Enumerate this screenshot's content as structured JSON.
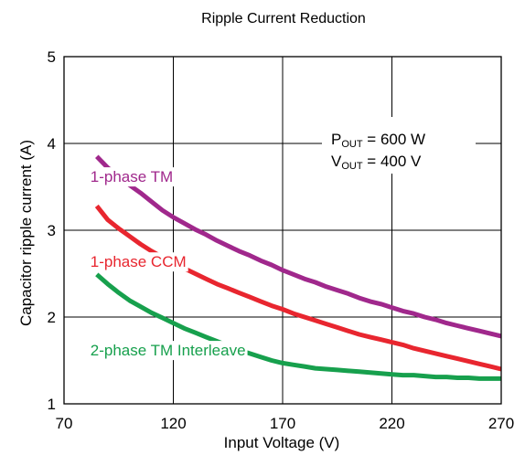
{
  "chart_data": {
    "type": "line",
    "title": "Ripple Current Reduction",
    "xlabel": "Input Voltage  (V)",
    "ylabel": "Capacitor ripple current (A)",
    "xlim": [
      70,
      270
    ],
    "ylim": [
      1,
      5
    ],
    "xticks": [
      70,
      120,
      170,
      220,
      270
    ],
    "yticks": [
      1,
      2,
      3,
      4,
      5
    ],
    "grid": true,
    "series": [
      {
        "name": "1-phase TM",
        "color": "#a0288c",
        "x": [
          85,
          90,
          95,
          100,
          105,
          110,
          115,
          120,
          125,
          130,
          135,
          140,
          145,
          150,
          155,
          160,
          165,
          170,
          175,
          180,
          185,
          190,
          195,
          200,
          205,
          210,
          215,
          220,
          225,
          230,
          235,
          240,
          245,
          250,
          255,
          260,
          265,
          270
        ],
        "y": [
          3.85,
          3.72,
          3.62,
          3.52,
          3.43,
          3.33,
          3.23,
          3.15,
          3.08,
          3.01,
          2.95,
          2.88,
          2.82,
          2.76,
          2.71,
          2.65,
          2.6,
          2.54,
          2.49,
          2.44,
          2.4,
          2.35,
          2.31,
          2.27,
          2.22,
          2.18,
          2.15,
          2.11,
          2.07,
          2.04,
          2.0,
          1.97,
          1.93,
          1.9,
          1.87,
          1.84,
          1.81,
          1.78
        ]
      },
      {
        "name": "1-phase CCM",
        "color": "#e8262f",
        "x": [
          85,
          90,
          95,
          100,
          105,
          110,
          115,
          120,
          125,
          130,
          135,
          140,
          145,
          150,
          155,
          160,
          165,
          170,
          175,
          180,
          185,
          190,
          195,
          200,
          205,
          210,
          215,
          220,
          225,
          230,
          235,
          240,
          245,
          250,
          255,
          260,
          265,
          270
        ],
        "y": [
          3.28,
          3.12,
          3.02,
          2.93,
          2.84,
          2.76,
          2.69,
          2.62,
          2.56,
          2.5,
          2.44,
          2.38,
          2.33,
          2.28,
          2.23,
          2.18,
          2.13,
          2.09,
          2.04,
          2.0,
          1.96,
          1.92,
          1.88,
          1.84,
          1.8,
          1.77,
          1.74,
          1.71,
          1.68,
          1.64,
          1.61,
          1.58,
          1.55,
          1.52,
          1.49,
          1.46,
          1.43,
          1.4
        ]
      },
      {
        "name": "2-phase TM Interleave",
        "color": "#17a04d",
        "x": [
          85,
          90,
          95,
          100,
          105,
          110,
          115,
          120,
          125,
          130,
          135,
          140,
          145,
          150,
          155,
          160,
          165,
          170,
          175,
          180,
          185,
          190,
          195,
          200,
          205,
          210,
          215,
          220,
          225,
          230,
          235,
          240,
          245,
          250,
          255,
          260,
          265,
          270
        ],
        "y": [
          2.49,
          2.38,
          2.28,
          2.19,
          2.12,
          2.05,
          1.99,
          1.93,
          1.87,
          1.82,
          1.77,
          1.72,
          1.67,
          1.62,
          1.58,
          1.54,
          1.5,
          1.47,
          1.45,
          1.43,
          1.41,
          1.4,
          1.39,
          1.38,
          1.37,
          1.36,
          1.35,
          1.34,
          1.33,
          1.33,
          1.32,
          1.31,
          1.31,
          1.3,
          1.3,
          1.29,
          1.29,
          1.29
        ]
      }
    ],
    "series_labels": [
      {
        "text": "1-phase TM",
        "color": "#a0288c",
        "x": 72,
        "y": 3.62
      },
      {
        "text": "1-phase CCM",
        "color": "#e8262f",
        "x": 72,
        "y": 2.64
      },
      {
        "text": "2-phase TM Interleave",
        "color": "#17a04d",
        "x": 72,
        "y": 1.62
      }
    ],
    "annotation": {
      "lines": [
        {
          "main": "P",
          "sub": "OUT",
          "rest": " = 600 W"
        },
        {
          "main": "V",
          "sub": "OUT",
          "rest": " = 400 V"
        }
      ]
    }
  }
}
